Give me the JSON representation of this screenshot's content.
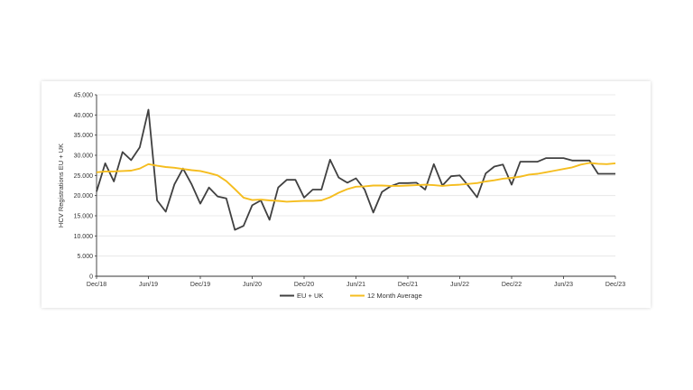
{
  "chart_data": {
    "type": "line",
    "title": "",
    "xlabel": "",
    "ylabel": "HCV Registrations EU + UK",
    "ylim": [
      0,
      45000
    ],
    "y_ticks": [
      0,
      5000,
      10000,
      15000,
      20000,
      25000,
      30000,
      35000,
      40000,
      45000
    ],
    "y_tick_labels": [
      "0",
      "5.000",
      "10.000",
      "15.000",
      "20.000",
      "25.000",
      "30.000",
      "35.000",
      "40.000",
      "45.000"
    ],
    "x_tick_labels": [
      "Dec/18",
      "Jun/19",
      "Dec/19",
      "Jun/20",
      "Dec/20",
      "Jun/21",
      "Dec/21",
      "Jun/22",
      "Dec/22",
      "Jun/23",
      "Dec/23"
    ],
    "x_tick_positions": [
      0,
      6,
      12,
      18,
      24,
      30,
      36,
      42,
      48,
      54,
      60
    ],
    "x_count": 61,
    "grid": true,
    "legend_position": "bottom",
    "series": [
      {
        "name": "EU + UK",
        "color": "#404040",
        "values": [
          21000,
          28000,
          23500,
          30800,
          28800,
          32000,
          41300,
          18800,
          16000,
          22800,
          26700,
          22800,
          18000,
          22000,
          19800,
          19300,
          11500,
          12500,
          17600,
          18800,
          14000,
          22000,
          23900,
          23900,
          19500,
          21500,
          21500,
          28900,
          24500,
          23200,
          24300,
          21500,
          15800,
          20900,
          22300,
          23100,
          23100,
          23200,
          21500,
          27800,
          22500,
          24800,
          25000,
          22400,
          19600,
          25500,
          27200,
          27700,
          22700,
          28400,
          28400,
          28400,
          29300,
          29300,
          29300,
          28700,
          28700,
          28700,
          25400,
          25400,
          25400
        ]
      },
      {
        "name": "12 Month Average",
        "color": "#f5bd1f",
        "values": [
          25800,
          26000,
          26000,
          26100,
          26200,
          26700,
          27800,
          27400,
          27100,
          26900,
          26600,
          26300,
          26100,
          25600,
          25000,
          23600,
          21600,
          19500,
          18900,
          19000,
          18800,
          18700,
          18500,
          18600,
          18700,
          18700,
          18800,
          19600,
          20700,
          21600,
          22200,
          22300,
          22500,
          22500,
          22400,
          22400,
          22500,
          22600,
          22700,
          22600,
          22400,
          22600,
          22700,
          22900,
          23100,
          23500,
          23800,
          24200,
          24400,
          24700,
          25200,
          25400,
          25800,
          26200,
          26600,
          27000,
          27700,
          28100,
          27900,
          27800,
          28000
        ]
      }
    ]
  }
}
